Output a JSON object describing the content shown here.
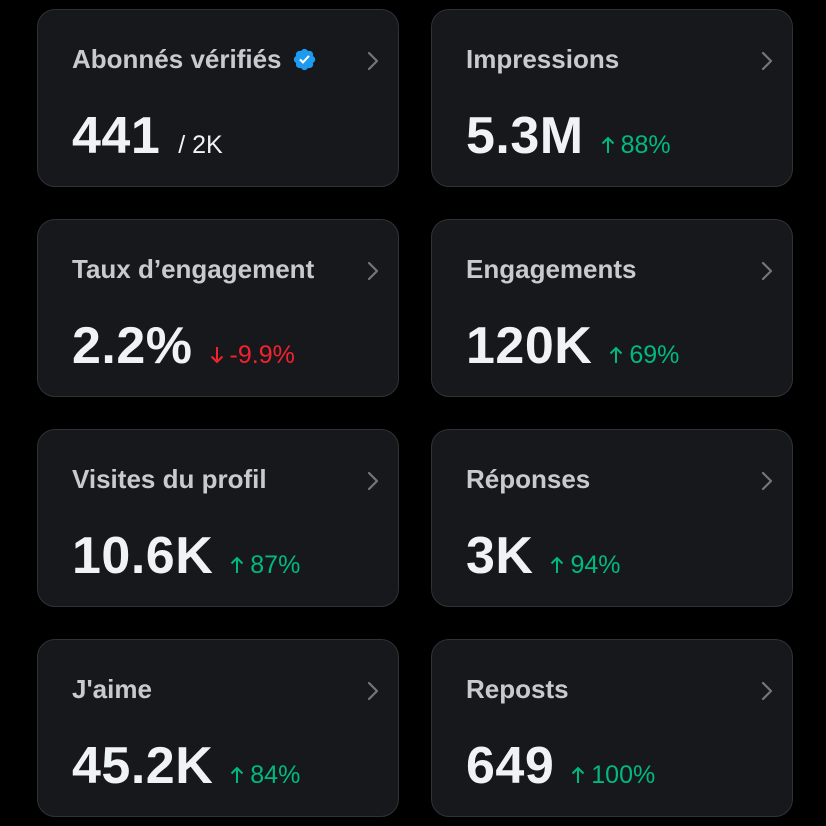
{
  "colors": {
    "background": "#000000",
    "card_background": "#16181c",
    "card_border": "#2f3336",
    "title_text": "#c7cbd0",
    "value_text": "#eff3f4",
    "positive": "#00ba7c",
    "negative": "#f4212e",
    "verified_badge": "#1d9bf0"
  },
  "cards": [
    {
      "title": "Abonnés vérifiés",
      "icon": "verified-badge-icon",
      "value": "441",
      "suffix": "/ 2K"
    },
    {
      "title": "Impressions",
      "value": "5.3M",
      "change": {
        "text": "88%",
        "direction": "up"
      }
    },
    {
      "title": "Taux d’engagement",
      "value": "2.2%",
      "change": {
        "text": "-9.9%",
        "direction": "down"
      }
    },
    {
      "title": "Engagements",
      "value": "120K",
      "change": {
        "text": "69%",
        "direction": "up"
      }
    },
    {
      "title": "Visites du profil",
      "value": "10.6K",
      "change": {
        "text": "87%",
        "direction": "up"
      }
    },
    {
      "title": "Réponses",
      "value": "3K",
      "change": {
        "text": "94%",
        "direction": "up"
      }
    },
    {
      "title": "J'aime",
      "value": "45.2K",
      "change": {
        "text": "84%",
        "direction": "up"
      }
    },
    {
      "title": "Reposts",
      "value": "649",
      "change": {
        "text": "100%",
        "direction": "up"
      }
    }
  ]
}
